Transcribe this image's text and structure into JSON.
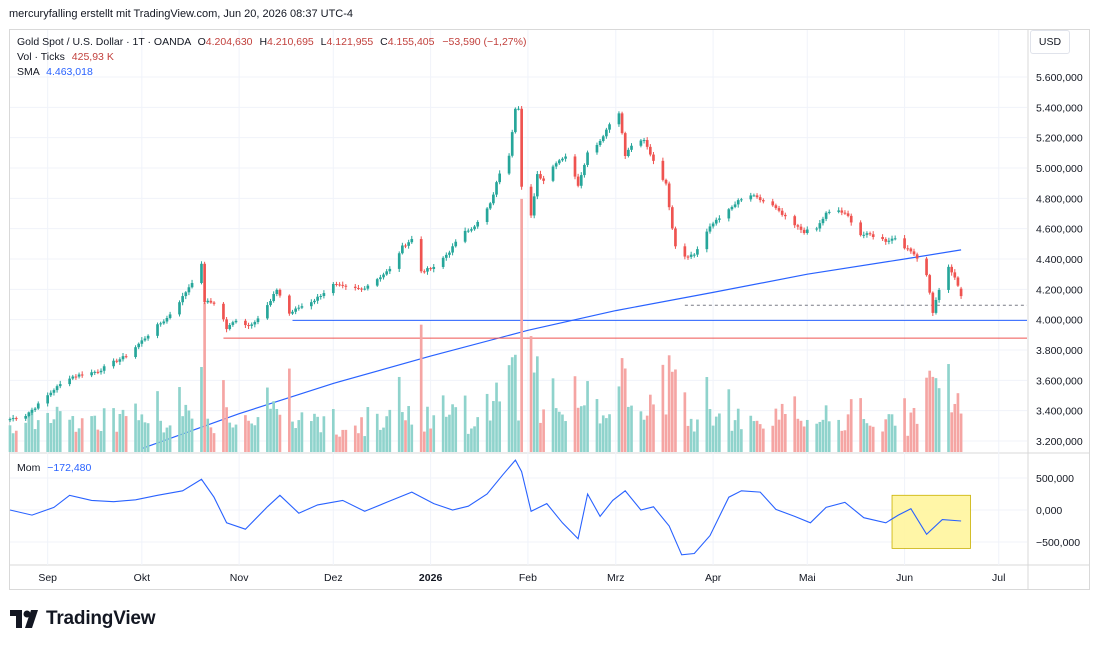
{
  "caption": "mercuryfalling erstellt mit TradingView.com, Jun 20, 2026 08:37 UTC-4",
  "legend": {
    "symbol": "Gold Spot / U.S. Dollar · 1T · OANDA",
    "o_label": "O",
    "o_value": "4.204,630",
    "h_label": "H",
    "h_value": "4.210,695",
    "l_label": "L",
    "l_value": "4.121,955",
    "c_label": "C",
    "c_value": "4.155,405",
    "change": "−53,590 (−1,27%)",
    "vol_label": "Vol · Ticks",
    "vol_value": "425,93 K",
    "sma_label": "SMA",
    "sma_value": "4.463,018"
  },
  "mom_legend": {
    "label": "Mom",
    "value": "−172,480"
  },
  "currency_button": "USD",
  "brand": "TradingView",
  "colors": {
    "up": "#26a69a",
    "down": "#ef5350",
    "sma": "#2962ff",
    "mom": "#2962ff",
    "highlight": "#fff59d",
    "vol_up": "#8fd3cc",
    "vol_down": "#f5a5a3"
  },
  "chart_data": [
    {
      "type": "candlestick",
      "title": "Gold Spot / U.S. Dollar · 1T · OANDA",
      "y_ticks": [
        "5.600,000",
        "5.400,000",
        "5.200,000",
        "5.000,000",
        "4.800,000",
        "4.600,000",
        "4.400,000",
        "4.200,000",
        "4.000,000",
        "3.800,000",
        "3.600,000",
        "3.400,000",
        "3.200,000"
      ],
      "x_ticks": [
        "Sep",
        "Okt",
        "Nov",
        "Dez",
        "2026",
        "Feb",
        "Mrz",
        "Apr",
        "Mai",
        "Jun",
        "Jul"
      ],
      "ylim": [
        3150,
        5700
      ],
      "x_start": "2025-08-20",
      "x_end": "2026-07-10",
      "closes": [
        [
          "2025-08-20",
          3345
        ],
        [
          "2025-08-25",
          3370
        ],
        [
          "2025-08-29",
          3440
        ],
        [
          "2025-09-03",
          3540
        ],
        [
          "2025-09-08",
          3620
        ],
        [
          "2025-09-12",
          3640
        ],
        [
          "2025-09-17",
          3660
        ],
        [
          "2025-09-22",
          3720
        ],
        [
          "2025-09-26",
          3760
        ],
        [
          "2025-10-01",
          3860
        ],
        [
          "2025-10-06",
          3960
        ],
        [
          "2025-10-09",
          4010
        ],
        [
          "2025-10-14",
          4150
        ],
        [
          "2025-10-17",
          4250
        ],
        [
          "2025-10-20",
          4360
        ],
        [
          "2025-10-21",
          4120
        ],
        [
          "2025-10-24",
          4110
        ],
        [
          "2025-10-27",
          4000
        ],
        [
          "2025-10-28",
          3940
        ],
        [
          "2025-10-31",
          4000
        ],
        [
          "2025-11-04",
          3960
        ],
        [
          "2025-11-07",
          4010
        ],
        [
          "2025-11-11",
          4120
        ],
        [
          "2025-11-13",
          4200
        ],
        [
          "2025-11-17",
          4040
        ],
        [
          "2025-11-20",
          4080
        ],
        [
          "2025-11-25",
          4130
        ],
        [
          "2025-12-01",
          4230
        ],
        [
          "2025-12-05",
          4210
        ],
        [
          "2025-12-10",
          4200
        ],
        [
          "2025-12-15",
          4270
        ],
        [
          "2025-12-19",
          4330
        ],
        [
          "2025-12-23",
          4480
        ],
        [
          "2025-12-26",
          4530
        ],
        [
          "2025-12-29",
          4320
        ],
        [
          "2026-01-02",
          4340
        ],
        [
          "2026-01-07",
          4450
        ],
        [
          "2026-01-12",
          4590
        ],
        [
          "2026-01-15",
          4610
        ],
        [
          "2026-01-20",
          4760
        ],
        [
          "2026-01-23",
          4970
        ],
        [
          "2026-01-26",
          5090
        ],
        [
          "2026-01-28",
          5400
        ],
        [
          "2026-01-29",
          5390
        ],
        [
          "2026-01-30",
          4870
        ],
        [
          "2026-02-02",
          4680
        ],
        [
          "2026-02-04",
          4960
        ],
        [
          "2026-02-06",
          4920
        ],
        [
          "2026-02-10",
          5040
        ],
        [
          "2026-02-13",
          5080
        ],
        [
          "2026-02-17",
          4890
        ],
        [
          "2026-02-20",
          5100
        ],
        [
          "2026-02-24",
          5180
        ],
        [
          "2026-02-27",
          5290
        ],
        [
          "2026-03-02",
          5370
        ],
        [
          "2026-03-04",
          5080
        ],
        [
          "2026-03-06",
          5150
        ],
        [
          "2026-03-10",
          5180
        ],
        [
          "2026-03-13",
          5050
        ],
        [
          "2026-03-17",
          4890
        ],
        [
          "2026-03-19",
          4610
        ],
        [
          "2026-03-20",
          4490
        ],
        [
          "2026-03-23",
          4420
        ],
        [
          "2026-03-26",
          4430
        ],
        [
          "2026-03-30",
          4580
        ],
        [
          "2026-04-02",
          4660
        ],
        [
          "2026-04-06",
          4720
        ],
        [
          "2026-04-09",
          4780
        ],
        [
          "2026-04-13",
          4820
        ],
        [
          "2026-04-16",
          4790
        ],
        [
          "2026-04-20",
          4750
        ],
        [
          "2026-04-23",
          4690
        ],
        [
          "2026-04-27",
          4620
        ],
        [
          "2026-04-30",
          4580
        ],
        [
          "2026-05-04",
          4600
        ],
        [
          "2026-05-07",
          4700
        ],
        [
          "2026-05-11",
          4720
        ],
        [
          "2026-05-14",
          4680
        ],
        [
          "2026-05-18",
          4560
        ],
        [
          "2026-05-21",
          4560
        ],
        [
          "2026-05-26",
          4520
        ],
        [
          "2026-05-29",
          4540
        ],
        [
          "2026-06-02",
          4460
        ],
        [
          "2026-06-04",
          4440
        ],
        [
          "2026-06-08",
          4300
        ],
        [
          "2026-06-10",
          4050
        ],
        [
          "2026-06-12",
          4200
        ],
        [
          "2026-06-15",
          4340
        ],
        [
          "2026-06-17",
          4280
        ],
        [
          "2026-06-19",
          4155
        ]
      ],
      "sma": {
        "label": "SMA",
        "value": 4463.018,
        "points": [
          [
            "2025-10-01",
            3150
          ],
          [
            "2025-11-01",
            3380
          ],
          [
            "2025-12-01",
            3580
          ],
          [
            "2026-01-01",
            3760
          ],
          [
            "2026-02-01",
            3930
          ],
          [
            "2026-03-01",
            4060
          ],
          [
            "2026-04-01",
            4180
          ],
          [
            "2026-05-01",
            4300
          ],
          [
            "2026-06-01",
            4400
          ],
          [
            "2026-06-19",
            4460
          ]
        ]
      },
      "horizontal_lines": [
        {
          "value": 3995,
          "from": "2025-11-18",
          "color": "#2962ff"
        },
        {
          "value": 3878,
          "from": "2025-10-27",
          "color": "#ef5350"
        },
        {
          "value": 4095,
          "from": "2026-03-23",
          "style": "dashed",
          "color": "#787b86"
        }
      ]
    },
    {
      "type": "bar",
      "title": "Vol · Ticks",
      "last_value": "425,93 K"
    },
    {
      "type": "line",
      "title": "Mom",
      "y_ticks": [
        "500,000",
        "0,000",
        "−500,000"
      ],
      "ylim": [
        -800,
        900
      ],
      "last_value": -172.48,
      "points": [
        [
          "2025-08-20",
          0
        ],
        [
          "2025-08-27",
          -80
        ],
        [
          "2025-09-03",
          40
        ],
        [
          "2025-09-08",
          230
        ],
        [
          "2025-09-15",
          150
        ],
        [
          "2025-09-22",
          130
        ],
        [
          "2025-09-29",
          160
        ],
        [
          "2025-10-06",
          230
        ],
        [
          "2025-10-14",
          300
        ],
        [
          "2025-10-20",
          480
        ],
        [
          "2025-10-24",
          200
        ],
        [
          "2025-10-28",
          -200
        ],
        [
          "2025-11-03",
          -300
        ],
        [
          "2025-11-10",
          50
        ],
        [
          "2025-11-14",
          230
        ],
        [
          "2025-11-20",
          -50
        ],
        [
          "2025-11-26",
          80
        ],
        [
          "2025-12-04",
          150
        ],
        [
          "2025-12-11",
          -20
        ],
        [
          "2025-12-18",
          120
        ],
        [
          "2025-12-26",
          280
        ],
        [
          "2026-01-02",
          100
        ],
        [
          "2026-01-08",
          0
        ],
        [
          "2026-01-13",
          60
        ],
        [
          "2026-01-19",
          250
        ],
        [
          "2026-01-24",
          550
        ],
        [
          "2026-01-28",
          780
        ],
        [
          "2026-01-30",
          600
        ],
        [
          "2026-02-02",
          -20
        ],
        [
          "2026-02-07",
          100
        ],
        [
          "2026-02-12",
          -200
        ],
        [
          "2026-02-17",
          -450
        ],
        [
          "2026-02-20",
          250
        ],
        [
          "2026-02-24",
          -100
        ],
        [
          "2026-02-28",
          150
        ],
        [
          "2026-03-04",
          300
        ],
        [
          "2026-03-09",
          0
        ],
        [
          "2026-03-13",
          50
        ],
        [
          "2026-03-18",
          -250
        ],
        [
          "2026-03-22",
          -700
        ],
        [
          "2026-03-26",
          -680
        ],
        [
          "2026-03-31",
          -400
        ],
        [
          "2026-04-06",
          200
        ],
        [
          "2026-04-10",
          300
        ],
        [
          "2026-04-16",
          280
        ],
        [
          "2026-04-21",
          10
        ],
        [
          "2026-04-27",
          -100
        ],
        [
          "2026-05-02",
          -200
        ],
        [
          "2026-05-07",
          40
        ],
        [
          "2026-05-13",
          120
        ],
        [
          "2026-05-19",
          -120
        ],
        [
          "2026-05-26",
          -200
        ],
        [
          "2026-05-30",
          -80
        ],
        [
          "2026-06-03",
          20
        ],
        [
          "2026-06-08",
          -380
        ],
        [
          "2026-06-13",
          -150
        ],
        [
          "2026-06-19",
          -172
        ]
      ],
      "highlight": {
        "from": "2026-05-28",
        "to": "2026-06-22",
        "y_from": -600,
        "y_to": 230
      }
    }
  ]
}
